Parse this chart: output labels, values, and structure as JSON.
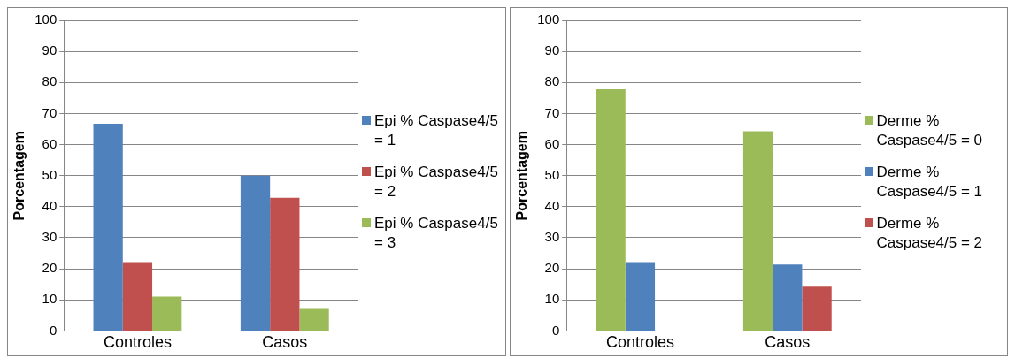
{
  "chart_data": [
    {
      "type": "bar",
      "ylabel": "Porcentagem",
      "categories": [
        "Controles",
        "Casos"
      ],
      "series": [
        {
          "name": "Epi % Caspase4/5 = 1",
          "color": "#4f81bd",
          "values": [
            66.7,
            50
          ]
        },
        {
          "name": "Epi % Caspase4/5 = 2",
          "color": "#c0504d",
          "values": [
            22.2,
            42.9
          ]
        },
        {
          "name": "Epi % Caspase4/5 = 3",
          "color": "#9bbb59",
          "values": [
            11.1,
            7.1
          ]
        }
      ],
      "ylim": [
        0,
        100
      ],
      "yticks": [
        0,
        10,
        20,
        30,
        40,
        50,
        60,
        70,
        80,
        90,
        100
      ],
      "grid": "y",
      "legend": "right"
    },
    {
      "type": "bar",
      "ylabel": "Porcentagem",
      "categories": [
        "Controles",
        "Casos"
      ],
      "series": [
        {
          "name": "Derme % Caspase4/5 = 0",
          "color": "#9bbb59",
          "values": [
            77.8,
            64.3
          ]
        },
        {
          "name": "Derme % Caspase4/5 = 1",
          "color": "#4f81bd",
          "values": [
            22.2,
            21.4
          ]
        },
        {
          "name": "Derme % Caspase4/5 = 2",
          "color": "#c0504d",
          "values": [
            0,
            14.3
          ]
        }
      ],
      "ylim": [
        0,
        100
      ],
      "yticks": [
        0,
        10,
        20,
        30,
        40,
        50,
        60,
        70,
        80,
        90,
        100
      ],
      "grid": "y",
      "legend": "right"
    }
  ]
}
